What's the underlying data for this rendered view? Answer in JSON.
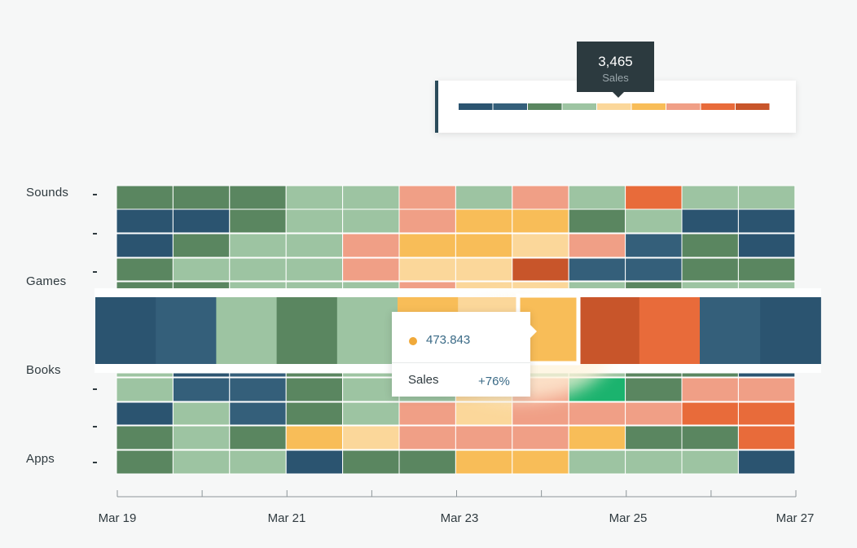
{
  "chart_data": {
    "type": "heatmap",
    "title": "",
    "metric": "Sales",
    "x_ticks": [
      "Mar 19",
      "Mar 21",
      "Mar 23",
      "Mar 25",
      "Mar 27"
    ],
    "y_categories": [
      "Sounds",
      "Games",
      "Books",
      "Apps"
    ],
    "color_scale": [
      "#2b5470",
      "#345f7a",
      "#5a8660",
      "#9dc4a2",
      "#fbd79a",
      "#f8bd58",
      "#f09f86",
      "#e86b3a",
      "#c8552a"
    ],
    "highlight_color": "#1bb36e",
    "rows_top": [
      [
        2,
        2,
        2,
        3,
        3,
        6,
        3,
        6,
        3,
        7,
        3,
        3
      ],
      [
        0,
        0,
        2,
        3,
        3,
        6,
        5,
        5,
        2,
        3,
        0,
        0
      ],
      [
        0,
        2,
        3,
        3,
        6,
        5,
        5,
        4,
        6,
        1,
        2,
        0
      ],
      [
        2,
        3,
        3,
        3,
        6,
        4,
        4,
        8,
        1,
        1,
        2,
        2
      ],
      [
        2,
        2,
        3,
        3,
        3,
        6,
        4,
        4,
        3,
        2,
        3,
        3
      ]
    ],
    "row_expanded": [
      0,
      1,
      3,
      2,
      3,
      5,
      4,
      5,
      8,
      7,
      1,
      0
    ],
    "rows_bottom": [
      [
        3,
        0,
        1,
        2,
        3,
        3,
        3,
        3,
        3,
        2,
        2,
        0
      ],
      [
        3,
        1,
        1,
        2,
        3,
        3,
        4,
        6,
        9,
        2,
        6,
        6
      ],
      [
        0,
        3,
        1,
        2,
        3,
        6,
        4,
        6,
        6,
        6,
        7,
        7
      ],
      [
        2,
        3,
        2,
        5,
        4,
        6,
        6,
        6,
        5,
        2,
        2,
        7
      ],
      [
        2,
        3,
        3,
        0,
        2,
        2,
        5,
        5,
        3,
        3,
        3,
        0
      ]
    ]
  },
  "legend": {
    "value": "3,465",
    "label": "Sales"
  },
  "tooltip": {
    "value": "473.843",
    "label": "Sales",
    "change": "+76%"
  }
}
